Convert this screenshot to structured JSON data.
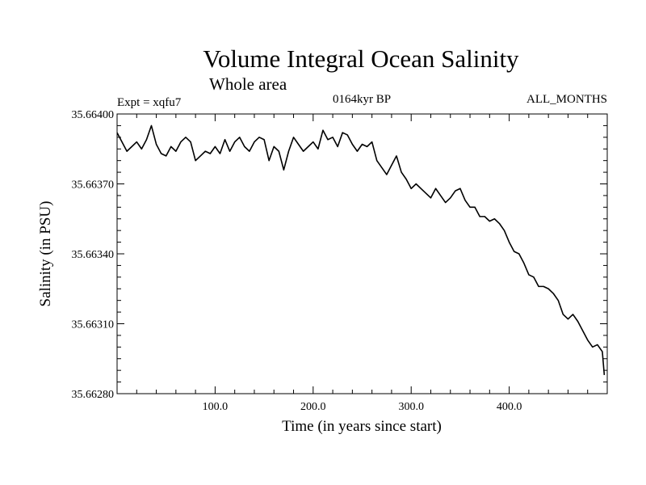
{
  "chart_data": {
    "type": "line",
    "title": "Volume Integral Ocean Salinity",
    "subtitle": "Whole area",
    "experiment_label": "Expt = xqfu7",
    "period_label": "0164kyr BP",
    "months_label": "ALL_MONTHS",
    "xlabel": "Time (in years since start)",
    "ylabel": "Salinity (in PSU)",
    "xlim": [
      0,
      500
    ],
    "ylim": [
      35.6628,
      35.664
    ],
    "xticks": [
      100,
      200,
      300,
      400
    ],
    "xtick_labels": [
      "100.0",
      "200.0",
      "300.0",
      "400.0"
    ],
    "yticks": [
      35.6628,
      35.6631,
      35.6634,
      35.6637,
      35.664
    ],
    "ytick_labels": [
      "35.66280",
      "35.66310",
      "35.66340",
      "35.66370",
      "35.66400"
    ],
    "grid": false,
    "series": [
      {
        "name": "Salinity",
        "x": [
          0,
          5,
          10,
          15,
          20,
          25,
          30,
          35,
          40,
          45,
          50,
          55,
          60,
          65,
          70,
          75,
          80,
          85,
          90,
          95,
          100,
          105,
          110,
          115,
          120,
          125,
          130,
          135,
          140,
          145,
          150,
          155,
          160,
          165,
          170,
          175,
          180,
          185,
          190,
          195,
          200,
          205,
          210,
          215,
          220,
          225,
          230,
          235,
          240,
          245,
          250,
          255,
          260,
          265,
          270,
          275,
          280,
          285,
          290,
          295,
          300,
          305,
          310,
          315,
          320,
          325,
          330,
          335,
          340,
          345,
          350,
          355,
          360,
          365,
          370,
          375,
          380,
          385,
          390,
          395,
          400,
          405,
          410,
          415,
          420,
          425,
          430,
          435,
          440,
          445,
          450,
          455,
          460,
          465,
          470,
          475,
          480,
          485,
          490,
          495,
          497
        ],
        "values": [
          35.66392,
          35.66388,
          35.66384,
          35.66386,
          35.66388,
          35.66385,
          35.66389,
          35.66395,
          35.66387,
          35.66383,
          35.66382,
          35.66386,
          35.66384,
          35.66388,
          35.6639,
          35.66388,
          35.6638,
          35.66382,
          35.66384,
          35.66383,
          35.66386,
          35.66383,
          35.66389,
          35.66384,
          35.66388,
          35.6639,
          35.66386,
          35.66384,
          35.66388,
          35.6639,
          35.66389,
          35.6638,
          35.66386,
          35.66384,
          35.66376,
          35.66384,
          35.6639,
          35.66387,
          35.66384,
          35.66386,
          35.66388,
          35.66385,
          35.66393,
          35.66389,
          35.6639,
          35.66386,
          35.66392,
          35.66391,
          35.66387,
          35.66384,
          35.66387,
          35.66386,
          35.66388,
          35.6638,
          35.66377,
          35.66374,
          35.66378,
          35.66382,
          35.66375,
          35.66372,
          35.66368,
          35.6637,
          35.66368,
          35.66366,
          35.66364,
          35.66368,
          35.66365,
          35.66362,
          35.66364,
          35.66367,
          35.66368,
          35.66363,
          35.6636,
          35.6636,
          35.66356,
          35.66356,
          35.66354,
          35.66355,
          35.66353,
          35.6635,
          35.66345,
          35.66341,
          35.6634,
          35.66336,
          35.66331,
          35.6633,
          35.66326,
          35.66326,
          35.66325,
          35.66323,
          35.6632,
          35.66314,
          35.66312,
          35.66314,
          35.66311,
          35.66307,
          35.66303,
          35.663,
          35.66301,
          35.66298,
          35.66288
        ]
      }
    ]
  }
}
